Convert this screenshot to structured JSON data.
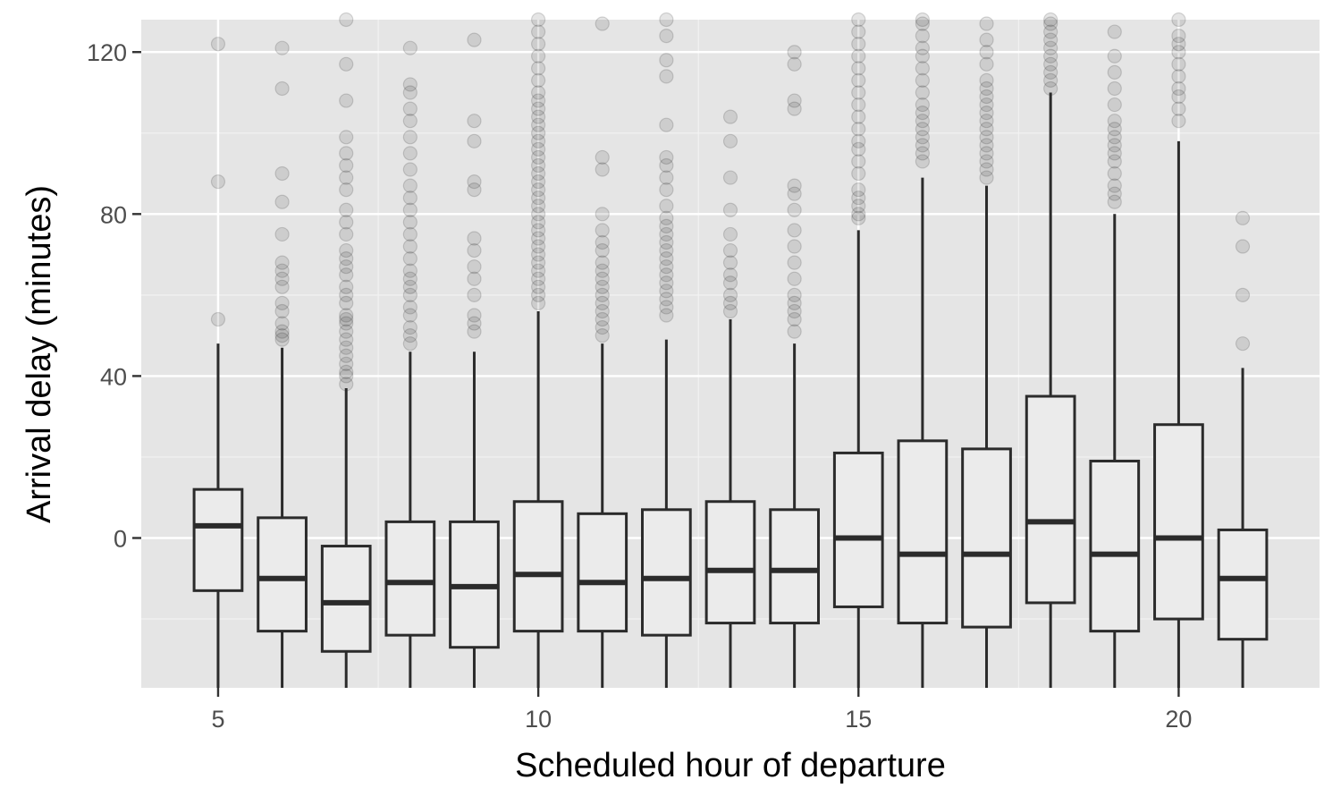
{
  "chart_data": {
    "type": "boxplot",
    "title": "",
    "xlabel": "Scheduled hour of departure",
    "ylabel": "Arrival delay (minutes)",
    "x_ticks": [
      5,
      10,
      15,
      20
    ],
    "y_ticks": [
      0,
      40,
      80,
      120
    ],
    "xlim": [
      3.8,
      22.2
    ],
    "ylim": [
      -37,
      128
    ],
    "grid": true,
    "legend": "none",
    "colors": {
      "panel": "#e5e5e5",
      "grid_major": "#ffffff",
      "grid_minor": "#f2f2f2",
      "box_fill": "#ebebeb",
      "box_stroke": "#2b2b2b",
      "outlier": "#000000"
    },
    "boxes": [
      {
        "hour": 5,
        "whisker_low": -37,
        "q1": -13,
        "median": 3,
        "q3": 12,
        "whisker_high": 48,
        "outliers": [
          54,
          88,
          122
        ]
      },
      {
        "hour": 6,
        "whisker_low": -37,
        "q1": -23,
        "median": -10,
        "q3": 5,
        "whisker_high": 47,
        "outliers": [
          49,
          50,
          51,
          53,
          56,
          58,
          62,
          64,
          66,
          68,
          75,
          83,
          90,
          111,
          121
        ]
      },
      {
        "hour": 7,
        "whisker_low": -37,
        "q1": -28,
        "median": -16,
        "q3": -2,
        "whisker_high": 37,
        "outliers": [
          38,
          40,
          41,
          43,
          45,
          47,
          49,
          51,
          53,
          54,
          55,
          58,
          60,
          62,
          65,
          67,
          69,
          71,
          75,
          78,
          81,
          86,
          89,
          92,
          95,
          99,
          108,
          117,
          128
        ]
      },
      {
        "hour": 8,
        "whisker_low": -37,
        "q1": -24,
        "median": -11,
        "q3": 4,
        "whisker_high": 46,
        "outliers": [
          48,
          50,
          52,
          55,
          57,
          60,
          62,
          64,
          66,
          69,
          72,
          75,
          78,
          81,
          84,
          87,
          91,
          95,
          99,
          103,
          106,
          110,
          112,
          121
        ]
      },
      {
        "hour": 9,
        "whisker_low": -37,
        "q1": -27,
        "median": -12,
        "q3": 4,
        "whisker_high": 46,
        "outliers": [
          51,
          53,
          55,
          60,
          64,
          67,
          71,
          74,
          86,
          88,
          98,
          103,
          123
        ]
      },
      {
        "hour": 10,
        "whisker_low": -37,
        "q1": -23,
        "median": -9,
        "q3": 9,
        "whisker_high": 56,
        "outliers": [
          58,
          60,
          62,
          64,
          66,
          68,
          70,
          72,
          74,
          76,
          78,
          80,
          82,
          84,
          86,
          88,
          90,
          92,
          94,
          96,
          98,
          100,
          102,
          104,
          106,
          108,
          110,
          113,
          116,
          119,
          122,
          125,
          128
        ]
      },
      {
        "hour": 11,
        "whisker_low": -37,
        "q1": -23,
        "median": -11,
        "q3": 6,
        "whisker_high": 48,
        "outliers": [
          50,
          52,
          54,
          56,
          58,
          60,
          62,
          64,
          66,
          68,
          71,
          73,
          76,
          80,
          91,
          94,
          127
        ]
      },
      {
        "hour": 12,
        "whisker_low": -37,
        "q1": -24,
        "median": -10,
        "q3": 7,
        "whisker_high": 49,
        "outliers": [
          55,
          57,
          59,
          61,
          63,
          65,
          67,
          69,
          71,
          73,
          75,
          77,
          79,
          82,
          86,
          89,
          92,
          94,
          102,
          114,
          118,
          124,
          128
        ]
      },
      {
        "hour": 13,
        "whisker_low": -37,
        "q1": -21,
        "median": -8,
        "q3": 9,
        "whisker_high": 54,
        "outliers": [
          56,
          58,
          60,
          63,
          65,
          68,
          71,
          75,
          81,
          89,
          98,
          104
        ]
      },
      {
        "hour": 14,
        "whisker_low": -37,
        "q1": -21,
        "median": -8,
        "q3": 7,
        "whisker_high": 48,
        "outliers": [
          51,
          54,
          56,
          58,
          60,
          64,
          68,
          72,
          76,
          81,
          85,
          87,
          106,
          108,
          117,
          120
        ]
      },
      {
        "hour": 15,
        "whisker_low": -37,
        "q1": -17,
        "median": 0,
        "q3": 21,
        "whisker_high": 76,
        "outliers": [
          79,
          80,
          82,
          84,
          86,
          90,
          93,
          96,
          98,
          101,
          104,
          107,
          110,
          113,
          116,
          119,
          122,
          125,
          128
        ]
      },
      {
        "hour": 16,
        "whisker_low": -37,
        "q1": -21,
        "median": -4,
        "q3": 24,
        "whisker_high": 89,
        "outliers": [
          93,
          95,
          97,
          99,
          101,
          103,
          105,
          107,
          110,
          113,
          116,
          119,
          121,
          124,
          127,
          128
        ]
      },
      {
        "hour": 17,
        "whisker_low": -37,
        "q1": -22,
        "median": -4,
        "q3": 22,
        "whisker_high": 87,
        "outliers": [
          89,
          91,
          93,
          95,
          97,
          99,
          101,
          103,
          105,
          107,
          109,
          111,
          113,
          117,
          120,
          123,
          127
        ]
      },
      {
        "hour": 18,
        "whisker_low": -37,
        "q1": -16,
        "median": 4,
        "q3": 35,
        "whisker_high": 110,
        "outliers": [
          111,
          113,
          115,
          117,
          119,
          121,
          123,
          125,
          127,
          128
        ]
      },
      {
        "hour": 19,
        "whisker_low": -37,
        "q1": -23,
        "median": -4,
        "q3": 19,
        "whisker_high": 80,
        "outliers": [
          83,
          85,
          87,
          90,
          93,
          95,
          97,
          99,
          101,
          103,
          107,
          111,
          115,
          119,
          125
        ]
      },
      {
        "hour": 20,
        "whisker_low": -37,
        "q1": -20,
        "median": 0,
        "q3": 28,
        "whisker_high": 98,
        "outliers": [
          103,
          106,
          109,
          111,
          114,
          117,
          120,
          122,
          124,
          128
        ]
      },
      {
        "hour": 21,
        "whisker_low": -37,
        "q1": -25,
        "median": -10,
        "q3": 2,
        "whisker_high": 42,
        "outliers": [
          48,
          60,
          72,
          79
        ]
      }
    ]
  }
}
